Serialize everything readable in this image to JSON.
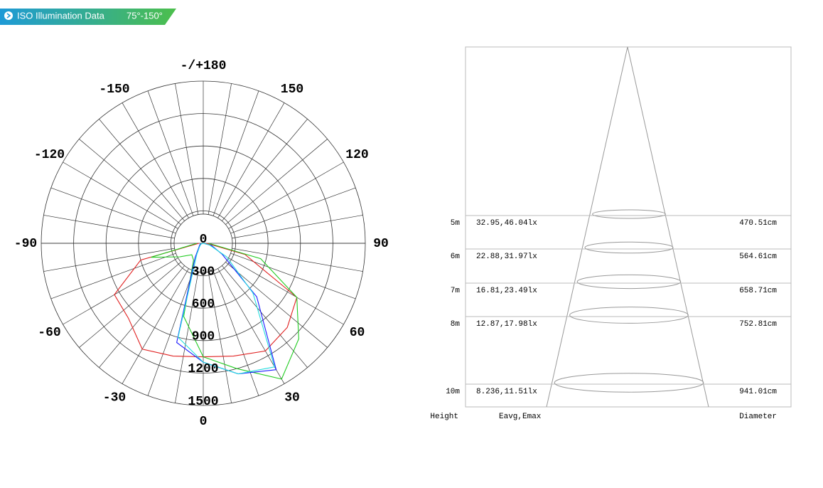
{
  "header": {
    "title": "ISO Illumination  Data",
    "range": "75°-150°"
  },
  "chart_data": {
    "type": "polar",
    "x": [
      -90,
      -75,
      -60,
      -45,
      -30,
      -15,
      0,
      15,
      30,
      45,
      60,
      75,
      90
    ],
    "series": [
      {
        "color": "#e02020",
        "values": [
          40,
          600,
          950,
          980,
          1130,
          1080,
          1050,
          1080,
          1150,
          1100,
          1000,
          400,
          30
        ]
      },
      {
        "color": "#22cc22",
        "values": [
          60,
          500,
          250,
          150,
          180,
          700,
          1050,
          1200,
          1450,
          1250,
          1000,
          550,
          50
        ]
      },
      {
        "color": "#1a1aff",
        "values": [
          0,
          30,
          40,
          60,
          150,
          950,
          1100,
          1250,
          1350,
          700,
          200,
          80,
          0
        ]
      },
      {
        "color": "#22dddd",
        "values": [
          0,
          20,
          30,
          50,
          120,
          900,
          1100,
          1250,
          1320,
          650,
          250,
          60,
          0
        ]
      }
    ],
    "rlim": [
      0,
      1500
    ],
    "rticks": [
      0,
      300,
      600,
      900,
      1200,
      1500
    ],
    "angle_ticks": [
      {
        "value": 180,
        "label": "-/+180"
      },
      150,
      120,
      90,
      60,
      30,
      0,
      -30,
      -60,
      -90,
      -120,
      -150
    ]
  },
  "cone": {
    "rows": [
      {
        "height": "5m",
        "illuminance": "32.95,46.04lx",
        "diameter": "470.51cm"
      },
      {
        "height": "6m",
        "illuminance": "22.88,31.97lx",
        "diameter": "564.61cm"
      },
      {
        "height": "7m",
        "illuminance": "16.81,23.49lx",
        "diameter": "658.71cm"
      },
      {
        "height": "8m",
        "illuminance": "12.87,17.98lx",
        "diameter": "752.81cm"
      },
      {
        "height": "10m",
        "illuminance": "8.236,11.51lx",
        "diameter": "941.01cm"
      }
    ],
    "column_labels": {
      "height": "Height",
      "illuminance": "Eavg,Emax",
      "diameter": "Diameter"
    }
  }
}
